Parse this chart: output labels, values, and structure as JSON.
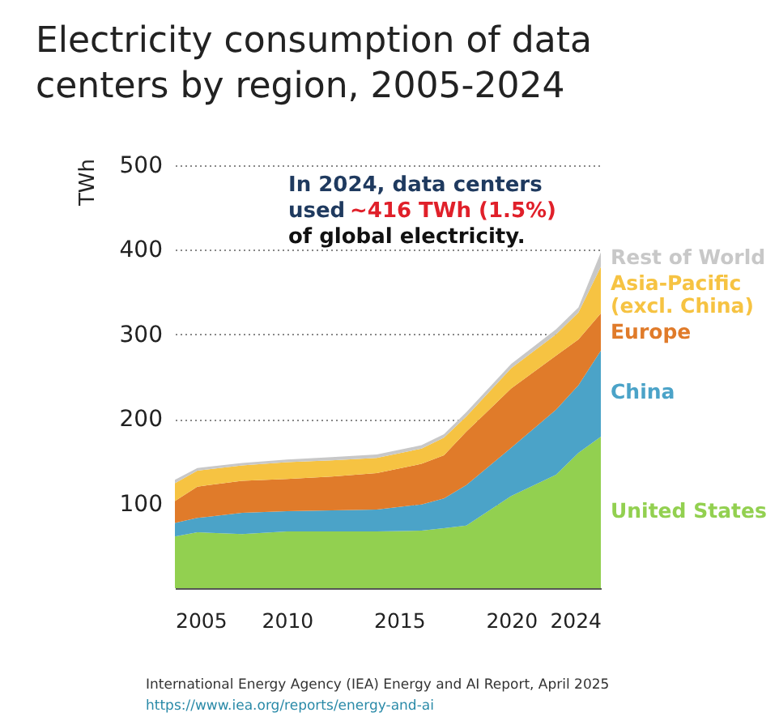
{
  "chart_data": {
    "type": "area",
    "stacked": true,
    "title": "Electricity consumption of data centers by region, 2005-2024",
    "ylabel": "TWh",
    "x": [
      2005,
      2006,
      2008,
      2010,
      2012,
      2014,
      2016,
      2017,
      2018,
      2020,
      2022,
      2023,
      2024
    ],
    "xlim": [
      2005,
      2024
    ],
    "xticks": [
      2005,
      2010,
      2015,
      2020,
      2024
    ],
    "ylim": [
      0,
      500
    ],
    "yticks": [
      100,
      200,
      300,
      400,
      500
    ],
    "grid": "y",
    "series": [
      {
        "name": "United States",
        "color": "#92d050",
        "values": [
          61,
          66,
          64,
          67,
          67,
          67,
          68,
          71,
          74,
          109,
          134,
          160,
          179
        ]
      },
      {
        "name": "China",
        "color": "#4ba3c8",
        "values": [
          16,
          17,
          25,
          24,
          25,
          26,
          31,
          35,
          48,
          57,
          77,
          80,
          102
        ]
      },
      {
        "name": "Europe",
        "color": "#e07b2a",
        "values": [
          26,
          37,
          38,
          38,
          40,
          43,
          48,
          51,
          63,
          70,
          64,
          54,
          44
        ]
      },
      {
        "name": "Asia-Pacific (excl. China)",
        "color": "#f6c342",
        "values": [
          21,
          19,
          18,
          20,
          19,
          18,
          18,
          21,
          18,
          24,
          25,
          32,
          55
        ]
      },
      {
        "name": "Rest of World",
        "color": "#c8c8c8",
        "values": [
          4,
          3,
          3,
          3,
          4,
          4,
          4,
          4,
          5,
          5,
          6,
          6,
          17
        ]
      }
    ],
    "annotations": [
      "In 2024, data centers",
      "used",
      "~416 TWh (1.5%)",
      "of global electricity.",
      "International Energy Agency (IEA) Energy and AI Report, April 2025",
      "https://www.iea.org/reports/energy-and-ai"
    ]
  }
}
